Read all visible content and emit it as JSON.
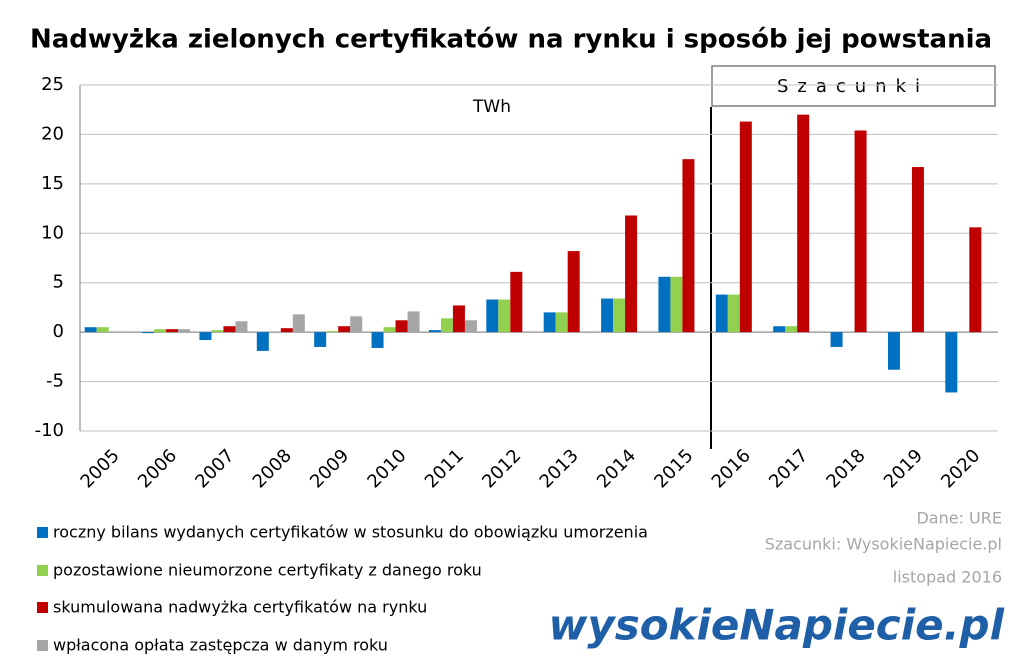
{
  "chart_data": {
    "type": "bar",
    "title": "Nadwyżka zielonych certyfikatów na rynku i sposób jej powstania",
    "unit_label": "TWh",
    "forecast_label": "Szacunki",
    "categories": [
      "2005",
      "2006",
      "2007",
      "2008",
      "2009",
      "2010",
      "2011",
      "2012",
      "2013",
      "2014",
      "2015",
      "2016",
      "2017",
      "2018",
      "2019",
      "2020"
    ],
    "series": [
      {
        "name": "roczny bilans wydanych certyfikatów w stosunku do obowiązku umorzenia",
        "color": "#0070c0",
        "values": [
          0.5,
          -0.1,
          -0.8,
          -1.9,
          -1.5,
          -1.6,
          0.2,
          3.3,
          2.0,
          3.4,
          5.6,
          3.8,
          0.6,
          -1.5,
          -3.8,
          -6.1
        ]
      },
      {
        "name": "pozostawione nieumorzone certyfikaty z danego roku",
        "color": "#92d050",
        "values": [
          0.5,
          0.3,
          0.2,
          0,
          0.1,
          0.5,
          1.4,
          3.3,
          2.0,
          3.4,
          5.6,
          3.8,
          0.6,
          0,
          0,
          0
        ]
      },
      {
        "name": "skumulowana nadwyżka certyfikatów na rynku",
        "color": "#c00000",
        "values": [
          0,
          0.3,
          0.6,
          0.4,
          0.6,
          1.2,
          2.7,
          6.1,
          8.2,
          11.8,
          17.5,
          21.3,
          22.0,
          20.4,
          16.7,
          10.6
        ]
      },
      {
        "name": "wpłacona opłata zastępcza w danym roku",
        "color": "#a6a6a6",
        "values": [
          0,
          0.3,
          1.1,
          1.8,
          1.6,
          2.1,
          1.2,
          0,
          0,
          0,
          0,
          0,
          0,
          0,
          0,
          0
        ]
      }
    ],
    "ylim": [
      -10,
      25
    ],
    "yticks": [
      -10,
      -5,
      0,
      5,
      10,
      15,
      20,
      25
    ],
    "grid": true,
    "source": "Dane: URE",
    "estimates_source": "Szacunki: WysokieNapiecie.pl",
    "date": "listopad 2016",
    "logo": "wysokieNapiecie.pl"
  }
}
